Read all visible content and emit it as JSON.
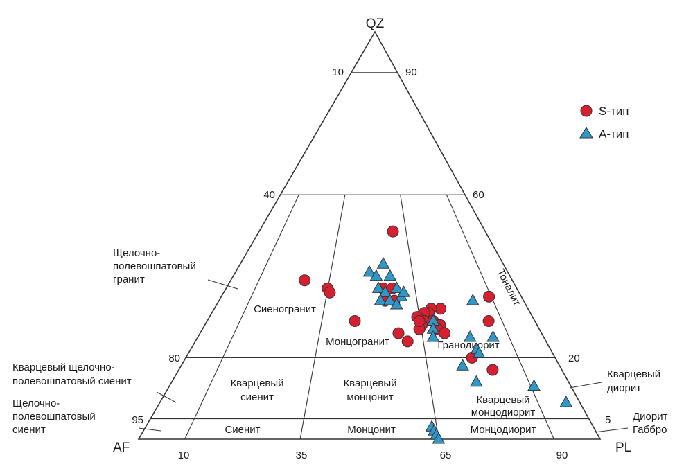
{
  "vertices": {
    "top": "QZ",
    "left": "AF",
    "right": "PL"
  },
  "ticks": {
    "left": [
      "10",
      "40",
      "80",
      "95"
    ],
    "right": [
      "90",
      "60",
      "20",
      "5"
    ],
    "bottom": [
      "10",
      "35",
      "65",
      "90"
    ]
  },
  "legend": {
    "s_type": {
      "label": "S-тип",
      "color": "#d62030"
    },
    "a_type": {
      "label": "A-тип",
      "color": "#2f98c8"
    }
  },
  "fields": {
    "syenogranite": "Сиеногранит",
    "monzogranite": "Монцогранит",
    "granodiorite": "Гранодиорит",
    "tonalite": "Тоналит",
    "quartz_syenite": [
      "Кварцевый",
      "сиенит"
    ],
    "quartz_monzonite": [
      "Кварцевый",
      "монцонит"
    ],
    "quartz_monzodiorite": [
      "Кварцевый",
      "монцодиорит"
    ],
    "syenite": "Сиенит",
    "monzonite": "Монцонит",
    "monzodiorite": "Монцодиорит"
  },
  "outer_labels": {
    "alkali_feldspar_granite": [
      "Щелочно-",
      "полевошпатовый",
      "гранит"
    ],
    "quartz_alkali_feldspar_syenite": [
      "Кварцевый щелочно-",
      "полевошпатовый сиенит"
    ],
    "alkali_feldspar_syenite": [
      "Щелочно-",
      "полевошпатовый",
      "сиенит"
    ],
    "quartz_diorite": [
      "Кварцевый",
      "диорит"
    ],
    "diorite_gabbro": [
      "Диорит",
      "Габбро"
    ]
  },
  "chart_data": {
    "type": "scatter",
    "ternary": true,
    "axes": [
      "QZ",
      "AF",
      "PL"
    ],
    "series": [
      {
        "name": "S-тип",
        "symbol": "circle",
        "color": "#d62030",
        "points": [
          [
            51,
            20,
            29
          ],
          [
            39,
            45,
            16
          ],
          [
            37,
            41,
            22
          ],
          [
            36,
            41,
            23
          ],
          [
            34,
            30,
            36
          ],
          [
            37,
            29,
            34
          ],
          [
            37,
            27,
            36
          ],
          [
            34,
            28,
            38
          ],
          [
            29,
            39,
            32
          ],
          [
            26,
            31,
            43
          ],
          [
            32,
            19,
            49
          ],
          [
            32,
            21,
            47
          ],
          [
            31,
            22,
            47
          ],
          [
            31,
            23,
            46
          ],
          [
            29,
            24,
            47
          ],
          [
            28,
            25,
            47
          ],
          [
            27,
            26,
            47
          ],
          [
            30,
            25,
            45
          ],
          [
            29,
            25,
            46
          ],
          [
            29,
            22,
            49
          ],
          [
            28,
            21,
            51
          ],
          [
            27,
            22,
            51
          ],
          [
            26,
            21,
            53
          ],
          [
            24,
            30,
            46
          ],
          [
            20,
            18,
            62
          ],
          [
            29,
            10,
            61
          ],
          [
            35,
            7,
            58
          ],
          [
            17,
            15,
            68
          ]
        ]
      },
      {
        "name": "A-тип",
        "symbol": "triangle",
        "color": "#2f98c8",
        "points": [
          [
            41,
            30,
            29
          ],
          [
            43,
            26,
            31
          ],
          [
            40,
            29,
            31
          ],
          [
            40,
            26,
            34
          ],
          [
            37,
            30,
            33
          ],
          [
            37,
            26,
            37
          ],
          [
            35,
            26,
            39
          ],
          [
            36,
            25,
            39
          ],
          [
            36,
            29,
            35
          ],
          [
            34,
            31,
            35
          ],
          [
            34,
            29,
            37
          ],
          [
            33,
            28,
            39
          ],
          [
            29,
            22,
            49
          ],
          [
            27,
            23,
            50
          ],
          [
            25,
            24,
            51
          ],
          [
            25,
            16,
            59
          ],
          [
            22,
            16,
            62
          ],
          [
            21,
            16,
            63
          ],
          [
            18,
            21,
            61
          ],
          [
            14,
            20,
            66
          ],
          [
            34,
            11,
            55
          ],
          [
            25,
            11,
            64
          ],
          [
            13,
            8,
            79
          ],
          [
            9,
            3,
            88
          ],
          [
            3,
            35,
            62
          ],
          [
            2,
            35,
            63
          ],
          [
            1,
            35,
            64
          ],
          [
            0,
            35,
            65
          ]
        ]
      }
    ]
  }
}
